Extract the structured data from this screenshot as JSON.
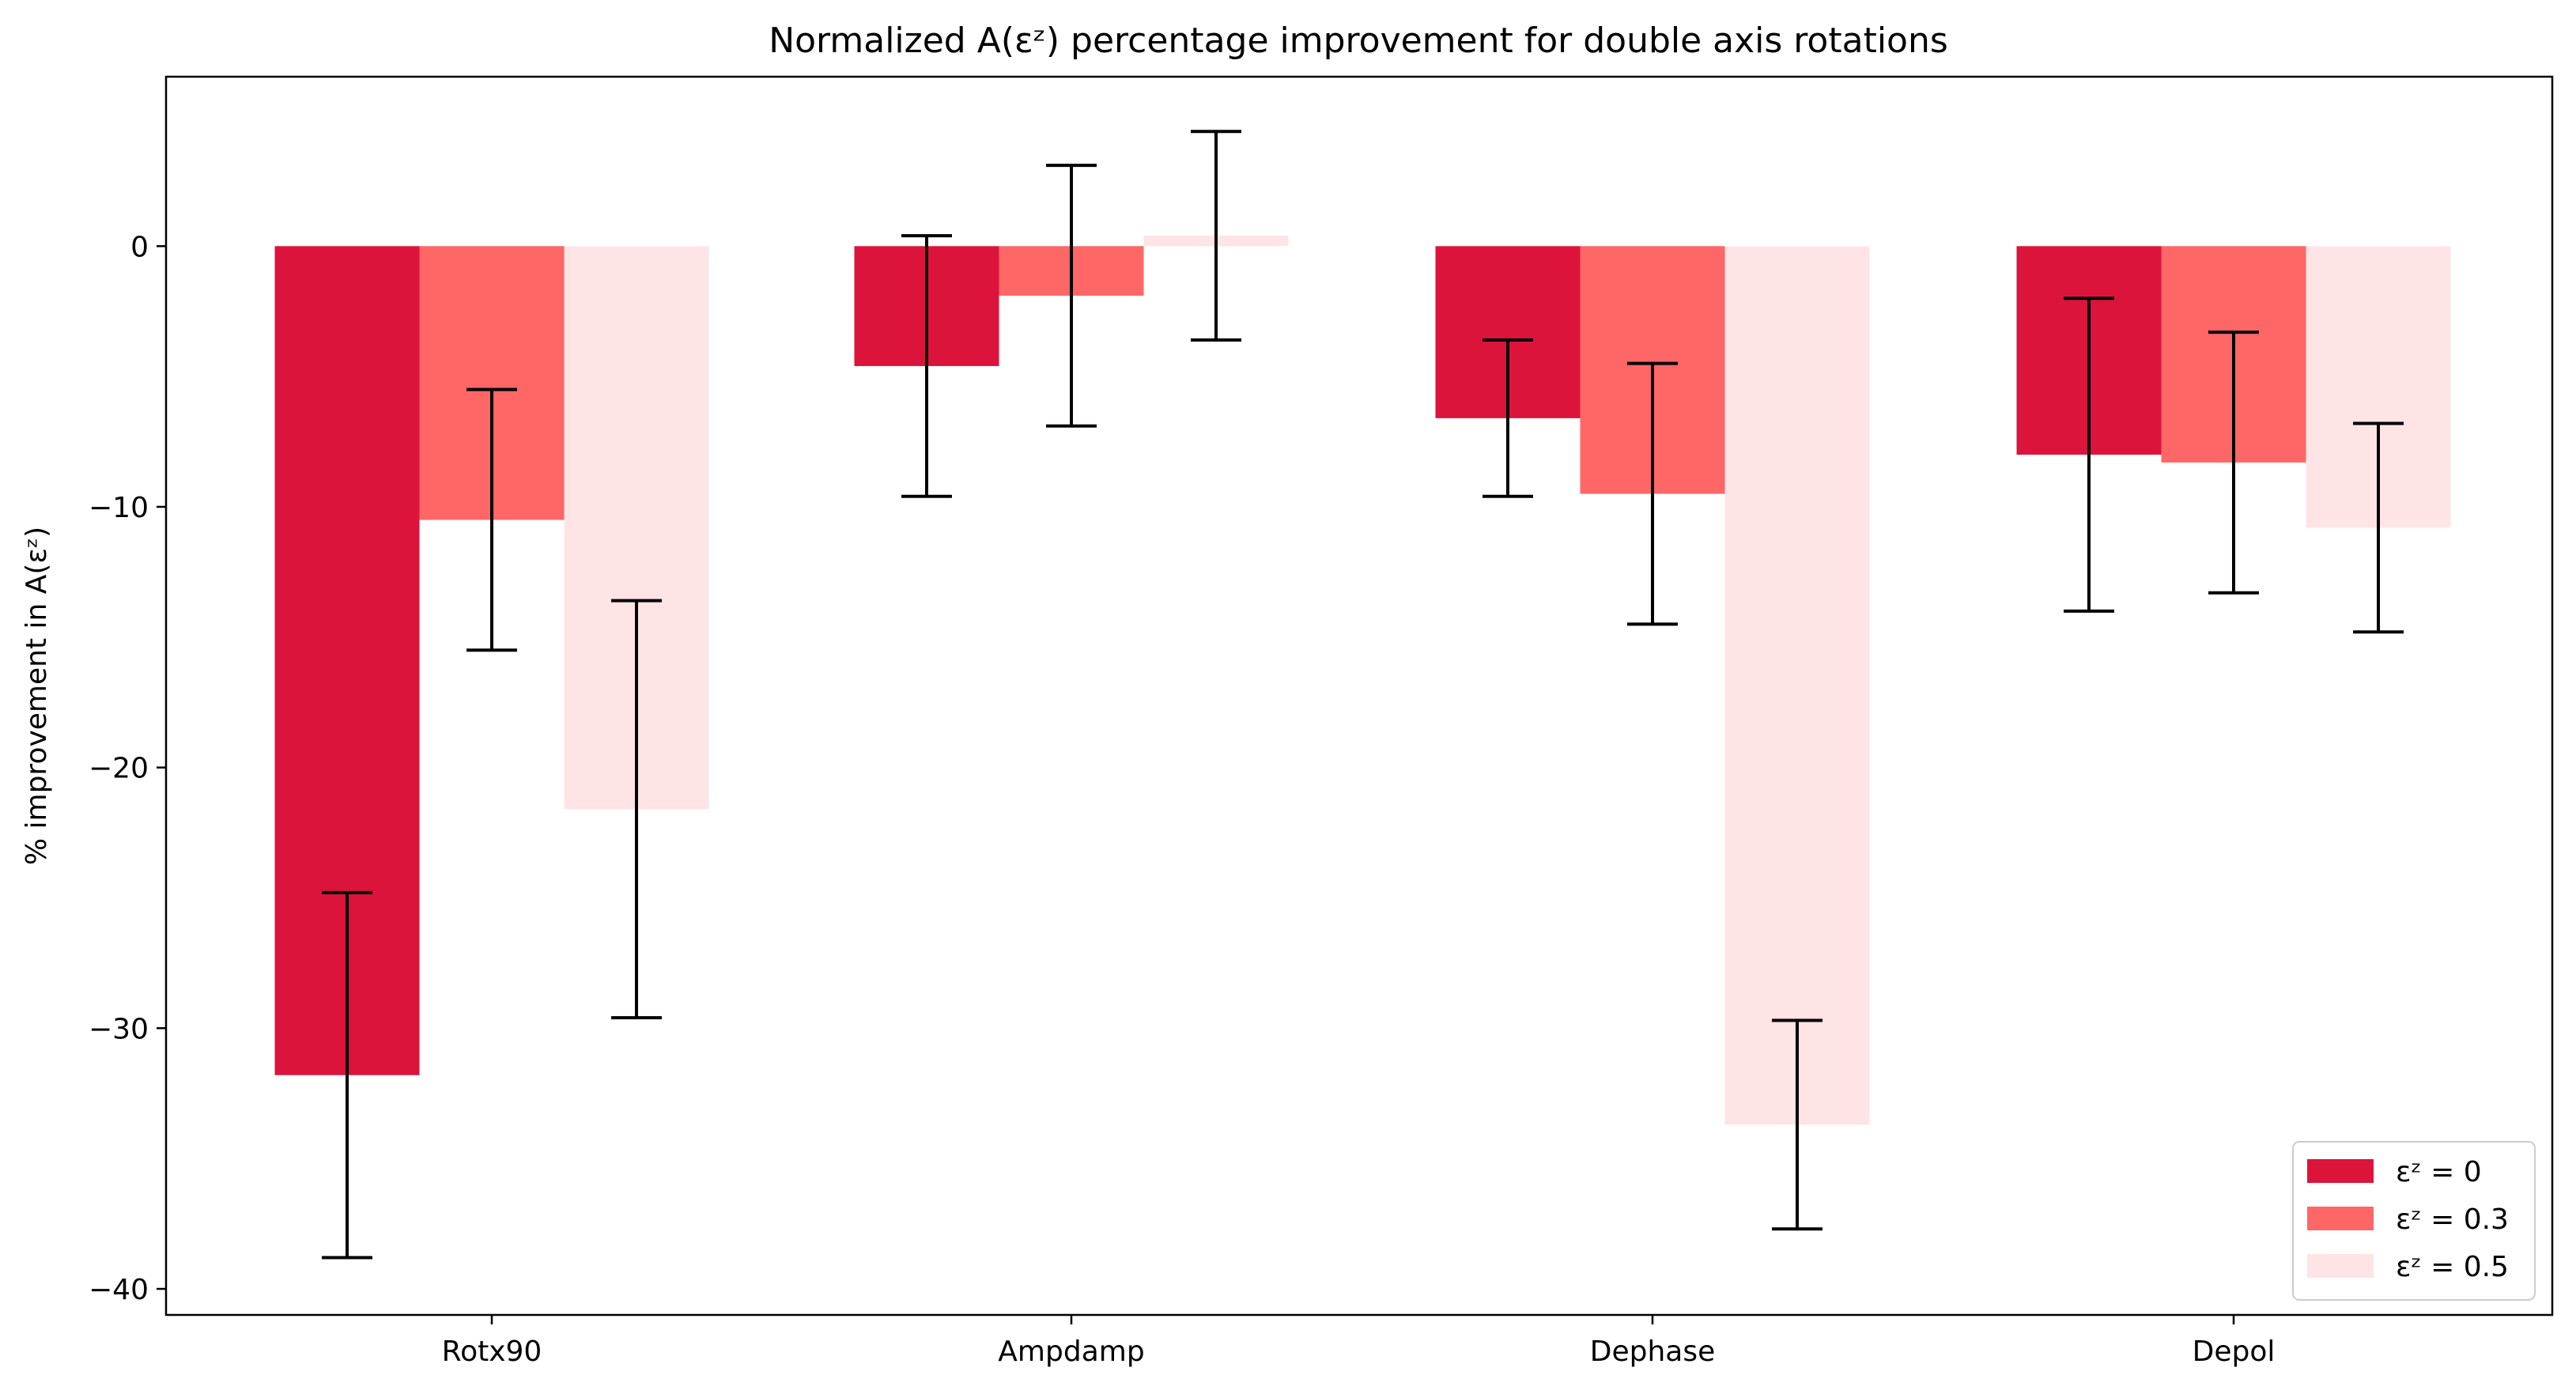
{
  "chart_data": {
    "type": "bar",
    "title": "Normalized A(εᶻ) percentage improvement for double axis rotations",
    "xlabel": "",
    "ylabel": "% improvement in A(εᶻ)",
    "categories": [
      "Rotx90",
      "Ampdamp",
      "Dephase",
      "Depol"
    ],
    "ylim": [
      -41,
      6.5
    ],
    "yticks": [
      0,
      -10,
      -20,
      -30,
      -40
    ],
    "ytick_labels": [
      "0",
      "−10",
      "−20",
      "−30",
      "−40"
    ],
    "grid": false,
    "legend_position": "bottom-right",
    "series": [
      {
        "name": "εᶻ = 0",
        "color": "#dc143c",
        "values": [
          -31.8,
          -4.6,
          -6.6,
          -8.0
        ],
        "error": [
          7.0,
          5.0,
          3.0,
          6.0
        ]
      },
      {
        "name": "εᶻ = 0.3",
        "color": "#ff6666",
        "values": [
          -10.5,
          -1.9,
          -9.5,
          -8.3
        ],
        "error": [
          5.0,
          5.0,
          5.0,
          5.0
        ]
      },
      {
        "name": "εᶻ = 0.5",
        "color": "#ffe4e6",
        "values": [
          -21.6,
          0.4,
          -33.7,
          -10.8
        ],
        "error": [
          8.0,
          4.0,
          4.0,
          4.0
        ]
      }
    ]
  }
}
